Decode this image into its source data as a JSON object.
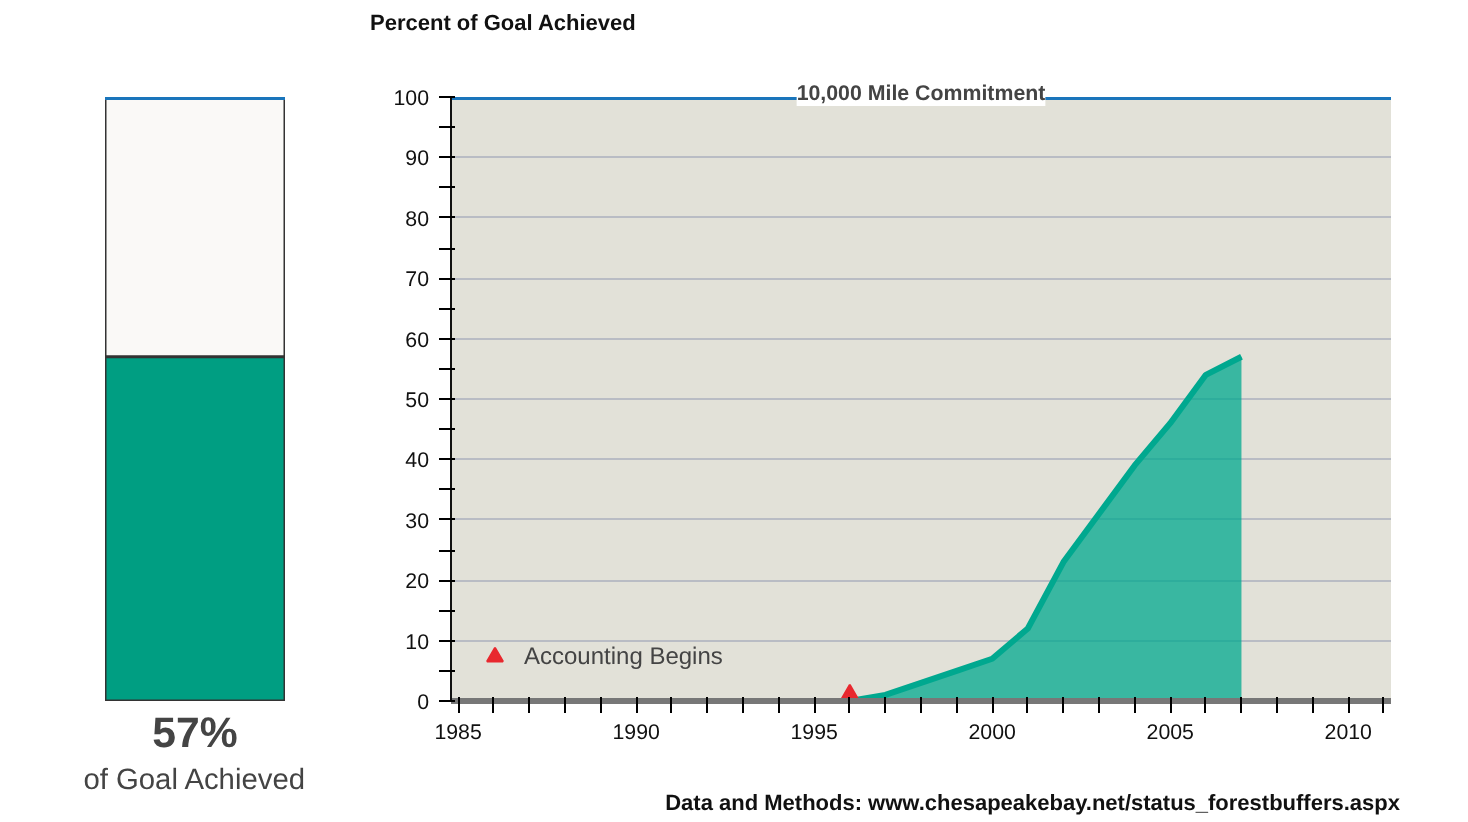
{
  "chart_data": [
    {
      "type": "bar",
      "categories": [
        null
      ],
      "values": [
        57
      ],
      "color": "#009e82",
      "value_labels": [
        "57%"
      ],
      "ylim": [
        0,
        100
      ],
      "ref_lines": [
        {
          "axis": "y",
          "value": 100,
          "color": "#1a75bb"
        }
      ],
      "annotations": [
        "of Goal Achieved"
      ]
    },
    {
      "type": "area",
      "ylabel": "Percent of Goal Achieved",
      "x": [
        1996,
        1997,
        1998,
        1999,
        2000,
        2001,
        2002,
        2003,
        2004,
        2005,
        2006,
        2007
      ],
      "series": [
        {
          "color": "#00a88f",
          "values": [
            0,
            1,
            3,
            5,
            7,
            12,
            23,
            31,
            39,
            46,
            54,
            57
          ]
        },
        {
          "type": "scatter",
          "name": "Accounting Begins",
          "color": "#e8282e",
          "marker": "triangle",
          "x": [
            1996
          ],
          "values": [
            0
          ]
        }
      ],
      "xlim": [
        1984.8,
        2011.2
      ],
      "ylim": [
        0,
        100
      ],
      "xticks": [
        1985,
        {
          "value": 1986,
          "label": null
        },
        {
          "value": 1987,
          "label": null
        },
        {
          "value": 1988,
          "label": null
        },
        {
          "value": 1989,
          "label": null
        },
        1990,
        {
          "value": 1991,
          "label": null
        },
        {
          "value": 1992,
          "label": null
        },
        {
          "value": 1993,
          "label": null
        },
        {
          "value": 1994,
          "label": null
        },
        1995,
        {
          "value": 1996,
          "label": null
        },
        {
          "value": 1997,
          "label": null
        },
        {
          "value": 1998,
          "label": null
        },
        {
          "value": 1999,
          "label": null
        },
        2000,
        {
          "value": 2001,
          "label": null
        },
        {
          "value": 2002,
          "label": null
        },
        {
          "value": 2003,
          "label": null
        },
        {
          "value": 2004,
          "label": null
        },
        2005,
        {
          "value": 2006,
          "label": null
        },
        {
          "value": 2007,
          "label": null
        },
        {
          "value": 2008,
          "label": null
        },
        {
          "value": 2009,
          "label": null
        },
        2010,
        {
          "value": 2011,
          "label": null
        }
      ],
      "yticks": [
        0,
        {
          "value": 5,
          "label": null
        },
        10,
        {
          "value": 15,
          "label": null
        },
        20,
        {
          "value": 25,
          "label": null
        },
        30,
        {
          "value": 35,
          "label": null
        },
        40,
        {
          "value": 45,
          "label": null
        },
        50,
        {
          "value": 55,
          "label": null
        },
        60,
        {
          "value": 65,
          "label": null
        },
        70,
        {
          "value": 75,
          "label": null
        },
        80,
        {
          "value": 85,
          "label": null
        },
        90,
        {
          "value": 95,
          "label": null
        },
        100
      ],
      "grid": "y",
      "legend": "bottom left",
      "ref_lines": [
        {
          "axis": "y",
          "value": 100,
          "label": "10,000 Mile Commitment",
          "color": "#1a75bb"
        }
      ],
      "annotations": [
        "Data and Methods: www.chesapeakebay.net/status_forestbuffers.aspx"
      ]
    }
  ]
}
